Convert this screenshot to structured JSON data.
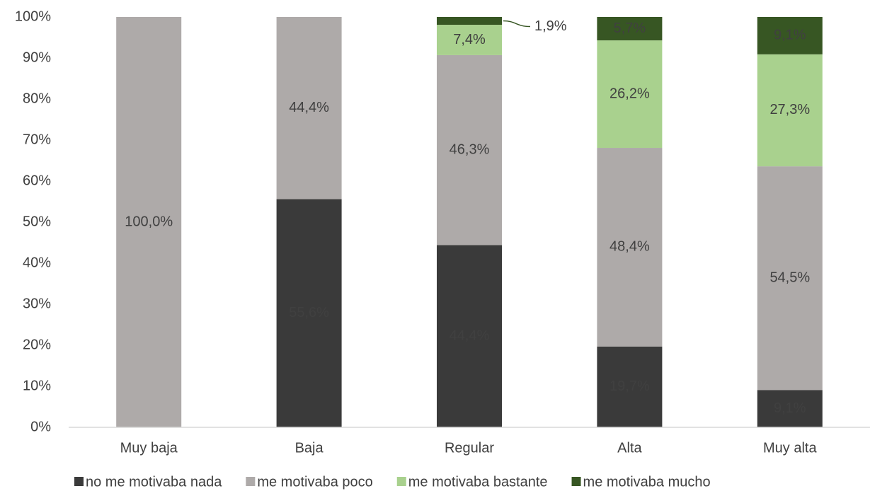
{
  "chart_data": {
    "type": "stacked_bar",
    "categories": [
      "Muy baja",
      "Baja",
      "Regular",
      "Alta",
      "Muy alta"
    ],
    "series": [
      {
        "name": "no me motivaba nada",
        "color": "#3a3a3a",
        "values": [
          0,
          55.6,
          44.4,
          19.7,
          9.1
        ],
        "value_labels": [
          null,
          "55,6%",
          "44,4%",
          "19,7%",
          "9,1%"
        ]
      },
      {
        "name": "me motivaba poco",
        "color": "#aeaaa9",
        "values": [
          100,
          44.4,
          46.3,
          48.4,
          54.5
        ],
        "value_labels": [
          "100,0%",
          "44,4%",
          "46,3%",
          "48,4%",
          "54,5%"
        ]
      },
      {
        "name": "me motivaba bastante",
        "color": "#a9d18e",
        "values": [
          0,
          0,
          7.4,
          26.2,
          27.3
        ],
        "value_labels": [
          null,
          null,
          "7,4%",
          "26,2%",
          "27,3%"
        ]
      },
      {
        "name": "me motivaba mucho",
        "color": "#375623",
        "values": [
          0,
          0,
          1.9,
          5.7,
          9.1
        ],
        "value_labels": [
          null,
          null,
          "1,9%",
          "5,7%",
          "9,1%"
        ]
      }
    ],
    "ylim": [
      0,
      100
    ],
    "yticks": [
      {
        "value": 0,
        "label": "0%"
      },
      {
        "value": 10,
        "label": "10%"
      },
      {
        "value": 20,
        "label": "20%"
      },
      {
        "value": 30,
        "label": "30%"
      },
      {
        "value": 40,
        "label": "40%"
      },
      {
        "value": 50,
        "label": "50%"
      },
      {
        "value": 60,
        "label": "60%"
      },
      {
        "value": 70,
        "label": "70%"
      },
      {
        "value": 80,
        "label": "80%"
      },
      {
        "value": 90,
        "label": "90%"
      },
      {
        "value": 100,
        "label": "100%"
      }
    ],
    "legend": "bottom"
  }
}
